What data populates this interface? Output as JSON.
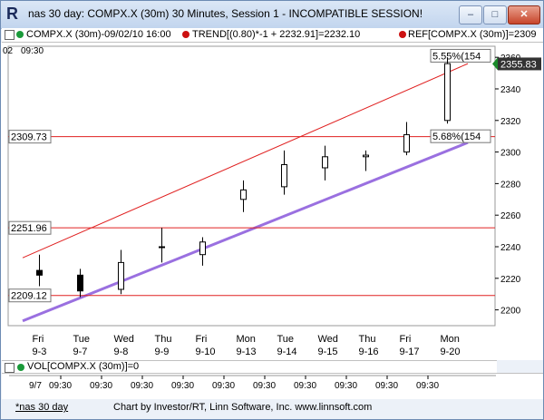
{
  "window": {
    "title": "nas 30 day: COMPX.X (30m) 30 Minutes, Session 1 - INCOMPATIBLE SESSION!",
    "app_icon_glyph": "R",
    "min_glyph": "–",
    "max_glyph": "□",
    "close_glyph": "✕"
  },
  "legend": {
    "series_label": "COMPX.X (30m)-09/02/10 16:00",
    "trend_label": "TREND[(0.80)*-1 + 2232.91]=2232.10",
    "ref_label": "REF[COMPX.X (30m)]=2309",
    "series_dot_color": "#1a9a3a",
    "trend_dot_color": "#cc1111",
    "ref_dot_color": "#cc1111"
  },
  "chart_data": {
    "type": "candlestick",
    "y_ticks": [
      2200,
      2220,
      2240,
      2260,
      2280,
      2300,
      2320,
      2340,
      2360
    ],
    "ylim": [
      2190,
      2367
    ],
    "last_price_label": "2355.83",
    "top_time_label": "09:30",
    "top_left_label": "02",
    "horizontal_levels": [
      {
        "value": 2309.73,
        "label": "2309.73"
      },
      {
        "value": 2251.96,
        "label": "2251.96"
      },
      {
        "value": 2209.12,
        "label": "2209.12"
      }
    ],
    "channel_labels": {
      "upper": "5.55%(154",
      "lower": "5.68%(154"
    },
    "sessions": [
      {
        "weekday": "Fri",
        "date": "9-3",
        "open": 2225,
        "close": 2222,
        "high": 2235,
        "low": 2215
      },
      {
        "weekday": "Tue",
        "date": "9-7",
        "open": 2222,
        "close": 2212,
        "high": 2226,
        "low": 2208
      },
      {
        "weekday": "Wed",
        "date": "9-8",
        "open": 2213,
        "close": 2230,
        "high": 2238,
        "low": 2210
      },
      {
        "weekday": "Thu",
        "date": "9-9",
        "open": 2240,
        "close": 2240,
        "high": 2252,
        "low": 2230
      },
      {
        "weekday": "Fri",
        "date": "9-10",
        "open": 2235,
        "close": 2243,
        "high": 2246,
        "low": 2228
      },
      {
        "weekday": "Mon",
        "date": "9-13",
        "open": 2270,
        "close": 2276,
        "high": 2282,
        "low": 2262
      },
      {
        "weekday": "Tue",
        "date": "9-14",
        "open": 2278,
        "close": 2292,
        "high": 2301,
        "low": 2273
      },
      {
        "weekday": "Wed",
        "date": "9-15",
        "open": 2290,
        "close": 2297,
        "high": 2304,
        "low": 2282
      },
      {
        "weekday": "Thu",
        "date": "9-16",
        "open": 2297,
        "close": 2298,
        "high": 2301,
        "low": 2288
      },
      {
        "weekday": "Fri",
        "date": "9-17",
        "open": 2300,
        "close": 2311,
        "high": 2319,
        "low": 2298
      },
      {
        "weekday": "Mon",
        "date": "9-20",
        "open": 2320,
        "close": 2356,
        "high": 2360,
        "low": 2318
      }
    ],
    "bottom_axis": {
      "first_label": "9/7",
      "time_label": "09:30"
    }
  },
  "volume": {
    "label": "VOL[COMPX.X (30m)]=0",
    "dot_color": "#1a9a3a"
  },
  "status": {
    "link": "*nas 30 day",
    "credit": "Chart by Investor/RT, Linn Software, Inc. www.linnsoft.com"
  }
}
